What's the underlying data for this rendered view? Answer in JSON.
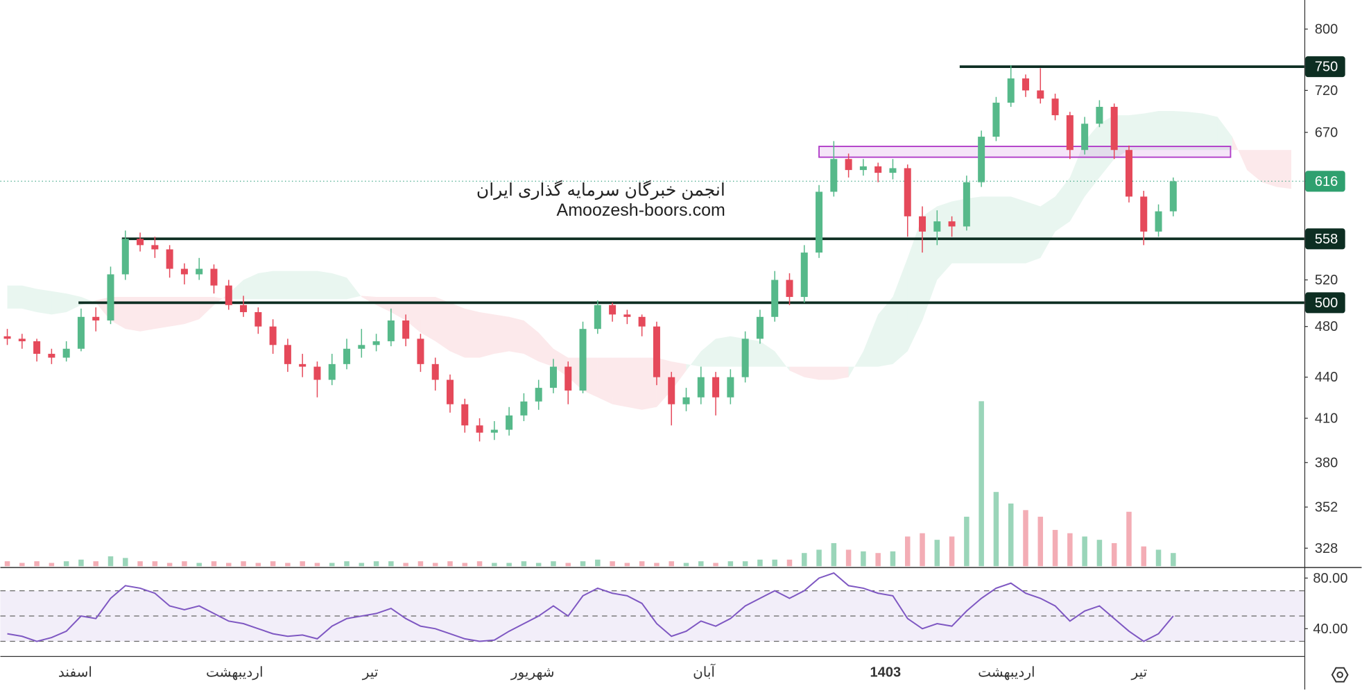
{
  "chart_data": {
    "type": "candlestick",
    "watermark": [
      "انجمن خبرگان سرمایه گذاری ایران",
      "Amoozesh-boors.com"
    ],
    "log_scale": true,
    "ylim": [
      318,
      841
    ],
    "yticks": [
      800,
      750,
      720,
      670,
      616,
      558,
      520,
      500,
      480,
      440,
      410,
      380,
      352,
      328
    ],
    "up_color": "#56b98a",
    "down_color": "#e5495a",
    "open": [
      472,
      470,
      468,
      458,
      455,
      462,
      488,
      485,
      525,
      558,
      552,
      548,
      530,
      525,
      530,
      515,
      498,
      492,
      480,
      465,
      450,
      448,
      438,
      450,
      462,
      465,
      468,
      485,
      470,
      450,
      438,
      420,
      405,
      400,
      402,
      412,
      422,
      432,
      448,
      430,
      478,
      498,
      490,
      488,
      480,
      440,
      420,
      425,
      440,
      425,
      440,
      470,
      488,
      520,
      505,
      545,
      605,
      640,
      628,
      632,
      625,
      630,
      580,
      565,
      575,
      570,
      615,
      665,
      705,
      735,
      720,
      710,
      690,
      650,
      680,
      700,
      650,
      600,
      565,
      585
    ],
    "high": [
      478,
      474,
      470,
      462,
      468,
      495,
      496,
      532,
      566,
      564,
      560,
      552,
      535,
      540,
      534,
      520,
      506,
      496,
      486,
      470,
      458,
      452,
      458,
      470,
      478,
      474,
      495,
      490,
      474,
      455,
      442,
      424,
      410,
      408,
      418,
      428,
      438,
      454,
      452,
      484,
      502,
      500,
      494,
      490,
      484,
      444,
      432,
      448,
      444,
      446,
      476,
      494,
      528,
      526,
      552,
      612,
      660,
      646,
      640,
      636,
      640,
      634,
      590,
      586,
      580,
      622,
      672,
      712,
      752,
      740,
      748,
      716,
      694,
      688,
      708,
      704,
      655,
      606,
      592,
      620
    ],
    "low": [
      465,
      462,
      452,
      450,
      452,
      460,
      476,
      482,
      520,
      546,
      540,
      522,
      516,
      520,
      508,
      494,
      488,
      474,
      458,
      444,
      440,
      425,
      434,
      446,
      455,
      460,
      464,
      464,
      444,
      430,
      414,
      400,
      394,
      395,
      398,
      408,
      416,
      428,
      420,
      428,
      474,
      484,
      482,
      472,
      434,
      405,
      415,
      420,
      412,
      420,
      436,
      466,
      484,
      498,
      500,
      540,
      600,
      620,
      622,
      615,
      618,
      560,
      545,
      552,
      560,
      566,
      610,
      660,
      700,
      712,
      704,
      684,
      640,
      645,
      676,
      640,
      594,
      552,
      560,
      580
    ],
    "close": [
      470,
      468,
      458,
      455,
      462,
      488,
      485,
      525,
      558,
      552,
      548,
      530,
      525,
      530,
      515,
      498,
      492,
      480,
      465,
      450,
      448,
      438,
      450,
      462,
      465,
      468,
      485,
      470,
      450,
      438,
      420,
      405,
      400,
      402,
      412,
      422,
      432,
      448,
      430,
      478,
      498,
      490,
      488,
      480,
      440,
      420,
      425,
      440,
      425,
      440,
      470,
      488,
      520,
      505,
      545,
      605,
      640,
      628,
      632,
      625,
      630,
      580,
      565,
      575,
      570,
      615,
      665,
      705,
      735,
      720,
      710,
      690,
      650,
      680,
      700,
      650,
      600,
      565,
      585,
      616
    ],
    "volume": [
      3,
      2,
      3,
      2,
      3,
      4,
      3,
      6,
      5,
      3,
      3,
      2,
      3,
      2,
      3,
      2,
      3,
      2,
      3,
      2,
      3,
      2,
      2,
      3,
      2,
      3,
      3,
      2,
      3,
      2,
      3,
      2,
      3,
      2,
      2,
      3,
      2,
      3,
      2,
      3,
      4,
      3,
      2,
      3,
      2,
      3,
      2,
      3,
      2,
      3,
      3,
      4,
      4,
      4,
      8,
      10,
      14,
      10,
      9,
      8,
      9,
      18,
      20,
      16,
      18,
      30,
      100,
      45,
      38,
      34,
      30,
      22,
      20,
      18,
      16,
      14,
      33,
      12,
      10,
      8
    ],
    "cloud_a": [
      515,
      515,
      512,
      510,
      508,
      505,
      500,
      485,
      478,
      476,
      478,
      480,
      482,
      486,
      498,
      508,
      520,
      526,
      528,
      528,
      528,
      528,
      526,
      522,
      505,
      498,
      492,
      485,
      475,
      468,
      460,
      455,
      455,
      458,
      460,
      458,
      452,
      448,
      440,
      430,
      425,
      420,
      418,
      416,
      418,
      430,
      445,
      460,
      470,
      472,
      470,
      468,
      460,
      445,
      440,
      438,
      438,
      440,
      460,
      490,
      505,
      540,
      580,
      590,
      595,
      598,
      600,
      600,
      600,
      595,
      590,
      600,
      620,
      660,
      680,
      690,
      690,
      692,
      695,
      695,
      694,
      692,
      688,
      665,
      628,
      615,
      610,
      608
    ],
    "cloud_b": [
      495,
      495,
      492,
      490,
      492,
      498,
      502,
      505,
      505,
      505,
      505,
      505,
      505,
      505,
      505,
      503,
      503,
      503,
      503,
      503,
      503,
      503,
      503,
      503,
      506,
      505,
      505,
      505,
      505,
      505,
      500,
      495,
      492,
      490,
      488,
      485,
      475,
      462,
      455,
      455,
      455,
      455,
      455,
      455,
      455,
      452,
      450,
      448,
      448,
      448,
      448,
      448,
      448,
      448,
      448,
      448,
      448,
      448,
      448,
      448,
      450,
      460,
      485,
      520,
      535,
      535,
      535,
      535,
      535,
      535,
      540,
      565,
      575,
      600,
      620,
      640,
      650,
      650,
      650,
      650,
      650,
      650,
      650,
      650,
      650,
      650,
      650,
      650
    ],
    "levels": [
      750,
      558,
      500
    ],
    "zone": [
      642,
      654
    ],
    "rsi": [
      36,
      34,
      30,
      33,
      38,
      50,
      48,
      64,
      74,
      72,
      68,
      58,
      55,
      58,
      52,
      46,
      44,
      40,
      36,
      34,
      35,
      32,
      42,
      48,
      50,
      52,
      56,
      48,
      42,
      40,
      36,
      32,
      30,
      31,
      38,
      44,
      50,
      58,
      50,
      66,
      72,
      68,
      66,
      60,
      44,
      34,
      38,
      46,
      42,
      48,
      58,
      64,
      70,
      64,
      70,
      80,
      84,
      74,
      72,
      68,
      66,
      48,
      40,
      44,
      42,
      54,
      64,
      72,
      76,
      68,
      64,
      58,
      46,
      54,
      58,
      48,
      38,
      30,
      36,
      50
    ],
    "rsi_ylim": [
      18,
      88
    ],
    "rsi_yticks": [
      {
        "value": 80,
        "label": "80.00"
      },
      {
        "value": 40,
        "label": "40.00"
      }
    ],
    "rsi_bands": [
      70,
      50,
      30
    ],
    "xticks": [
      {
        "value": 4.6,
        "label": "اسفند"
      },
      {
        "value": 15.4,
        "label": "اردیبهشت"
      },
      {
        "value": 24.6,
        "label": "تیر"
      },
      {
        "value": 35.6,
        "label": "شهریور"
      },
      {
        "value": 47.2,
        "label": "آبان"
      },
      {
        "value": 59.5,
        "label": "1403"
      },
      {
        "value": 67.7,
        "label": "اردیبهشت"
      },
      {
        "value": 76.7,
        "label": "تیر"
      }
    ]
  }
}
